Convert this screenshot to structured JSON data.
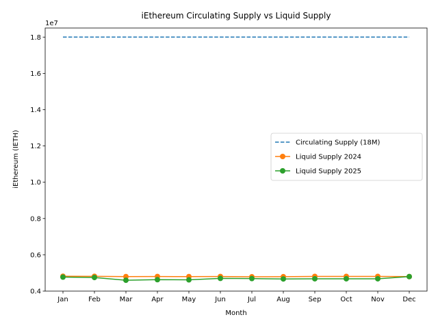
{
  "chart_data": {
    "type": "line",
    "title": "iEthereum Circulating Supply vs Liquid Supply",
    "xlabel": "Month",
    "ylabel": "iEthereum (IETH)",
    "y_offset_label": "1e7",
    "categories": [
      "Jan",
      "Feb",
      "Mar",
      "Apr",
      "May",
      "Jun",
      "Jul",
      "Aug",
      "Sep",
      "Oct",
      "Nov",
      "Dec"
    ],
    "ylim": [
      4000000,
      18500000
    ],
    "yticks": [
      4000000,
      6000000,
      8000000,
      10000000,
      12000000,
      14000000,
      16000000,
      18000000
    ],
    "ytick_labels": [
      "0.4",
      "0.6",
      "0.8",
      "1.0",
      "1.2",
      "1.4",
      "1.6",
      "1.8"
    ],
    "legend_position": "center-right",
    "series": [
      {
        "name": "Circulating Supply (18M)",
        "color": "#1f77b4",
        "style": "dashed",
        "marker": "none",
        "values": [
          18000000,
          18000000,
          18000000,
          18000000,
          18000000,
          18000000,
          18000000,
          18000000,
          18000000,
          18000000,
          18000000,
          18000000
        ]
      },
      {
        "name": "Liquid Supply 2024",
        "color": "#ff7f0e",
        "style": "solid",
        "marker": "circle",
        "values": [
          4820000,
          4815000,
          4800000,
          4805000,
          4800000,
          4805000,
          4790000,
          4795000,
          4810000,
          4810000,
          4810000,
          4800000
        ]
      },
      {
        "name": "Liquid Supply 2025",
        "color": "#2ca02c",
        "style": "solid",
        "marker": "circle",
        "values": [
          4770000,
          4750000,
          4600000,
          4630000,
          4620000,
          4700000,
          4690000,
          4670000,
          4680000,
          4680000,
          4680000,
          4800000
        ]
      }
    ]
  }
}
